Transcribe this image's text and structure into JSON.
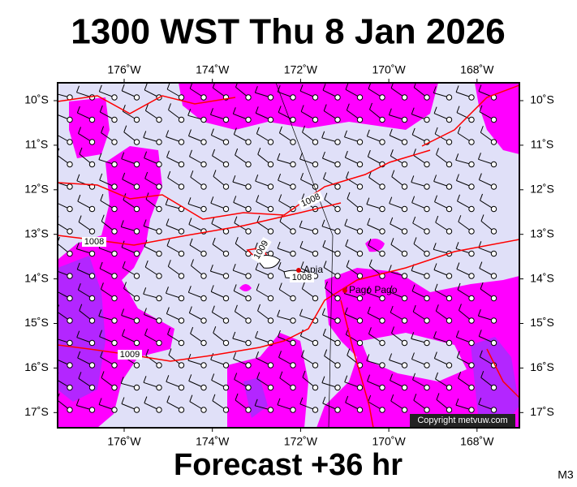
{
  "title": "1300 WST Thu 8 Jan 2026",
  "map": {
    "longitude_labels": [
      "176˚W",
      "174˚W",
      "172˚W",
      "170˚W",
      "168˚W"
    ],
    "latitude_labels": [
      "10˚S",
      "11˚S",
      "12˚S",
      "13˚S",
      "14˚S",
      "15˚S",
      "16˚S",
      "17˚S"
    ],
    "isobar_labels": [
      "1008",
      "1008",
      "1009",
      "1008",
      "1009"
    ],
    "places": [
      "Apia",
      "Pago Pago"
    ],
    "copyright": "Copyright metvuw.com"
  },
  "footer": {
    "forecast": "Forecast +36 hr",
    "code": "M3"
  }
}
